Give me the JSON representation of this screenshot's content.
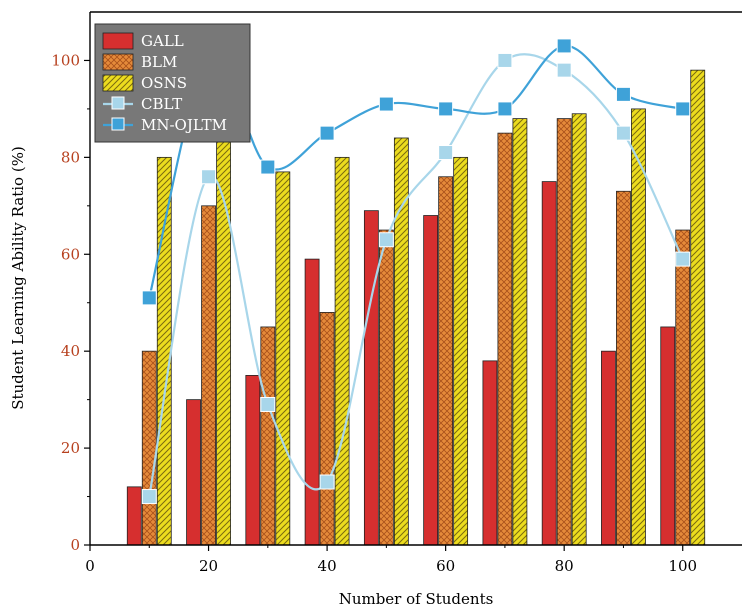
{
  "chart_data": {
    "type": "bar",
    "title": "",
    "xlabel": "Number of Students",
    "ylabel": "Student Learning Ability Ratio (%)",
    "x": [
      10,
      20,
      30,
      40,
      50,
      60,
      70,
      80,
      90,
      100
    ],
    "xlim": [
      0,
      110
    ],
    "ylim": [
      0,
      110
    ],
    "xticks": [
      0,
      20,
      40,
      60,
      80,
      100
    ],
    "yticks": [
      0,
      20,
      40,
      60,
      80,
      100
    ],
    "grid": false,
    "legend_position": "top-left",
    "bar_series": [
      {
        "name": "GALL",
        "values": [
          12,
          30,
          35,
          59,
          69,
          68,
          38,
          75,
          40,
          45
        ],
        "color": "#d62f2f",
        "pattern": "solid"
      },
      {
        "name": "BLM",
        "values": [
          40,
          70,
          45,
          48,
          65,
          76,
          85,
          88,
          73,
          65
        ],
        "color": "#e58a3a",
        "pattern": "crosshatch"
      },
      {
        "name": "OSNS",
        "values": [
          80,
          85,
          77,
          80,
          84,
          80,
          88,
          89,
          90,
          98
        ],
        "color": "#ecdc1e",
        "pattern": "diagonal"
      }
    ],
    "line_series": [
      {
        "name": "CBLT",
        "values": [
          10,
          76,
          29,
          13,
          63,
          81,
          100,
          98,
          85,
          59
        ],
        "color": "#a8d6ea",
        "marker": "square"
      },
      {
        "name": "MN-OJLTM",
        "values": [
          51,
          100,
          78,
          85,
          91,
          90,
          90,
          103,
          93,
          90
        ],
        "color": "#3fa2d8",
        "marker": "square"
      }
    ]
  }
}
